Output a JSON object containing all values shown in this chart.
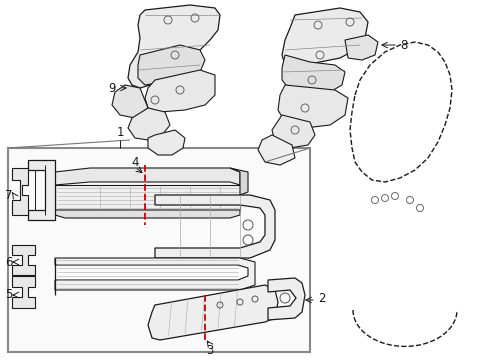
{
  "bg_color": "#ffffff",
  "line_color": "#1a1a1a",
  "red_color": "#cc0000",
  "box_edge_color": "#888888",
  "figsize": [
    4.89,
    3.6
  ],
  "dpi": 100,
  "xlim": [
    0,
    489
  ],
  "ylim": [
    0,
    360
  ]
}
